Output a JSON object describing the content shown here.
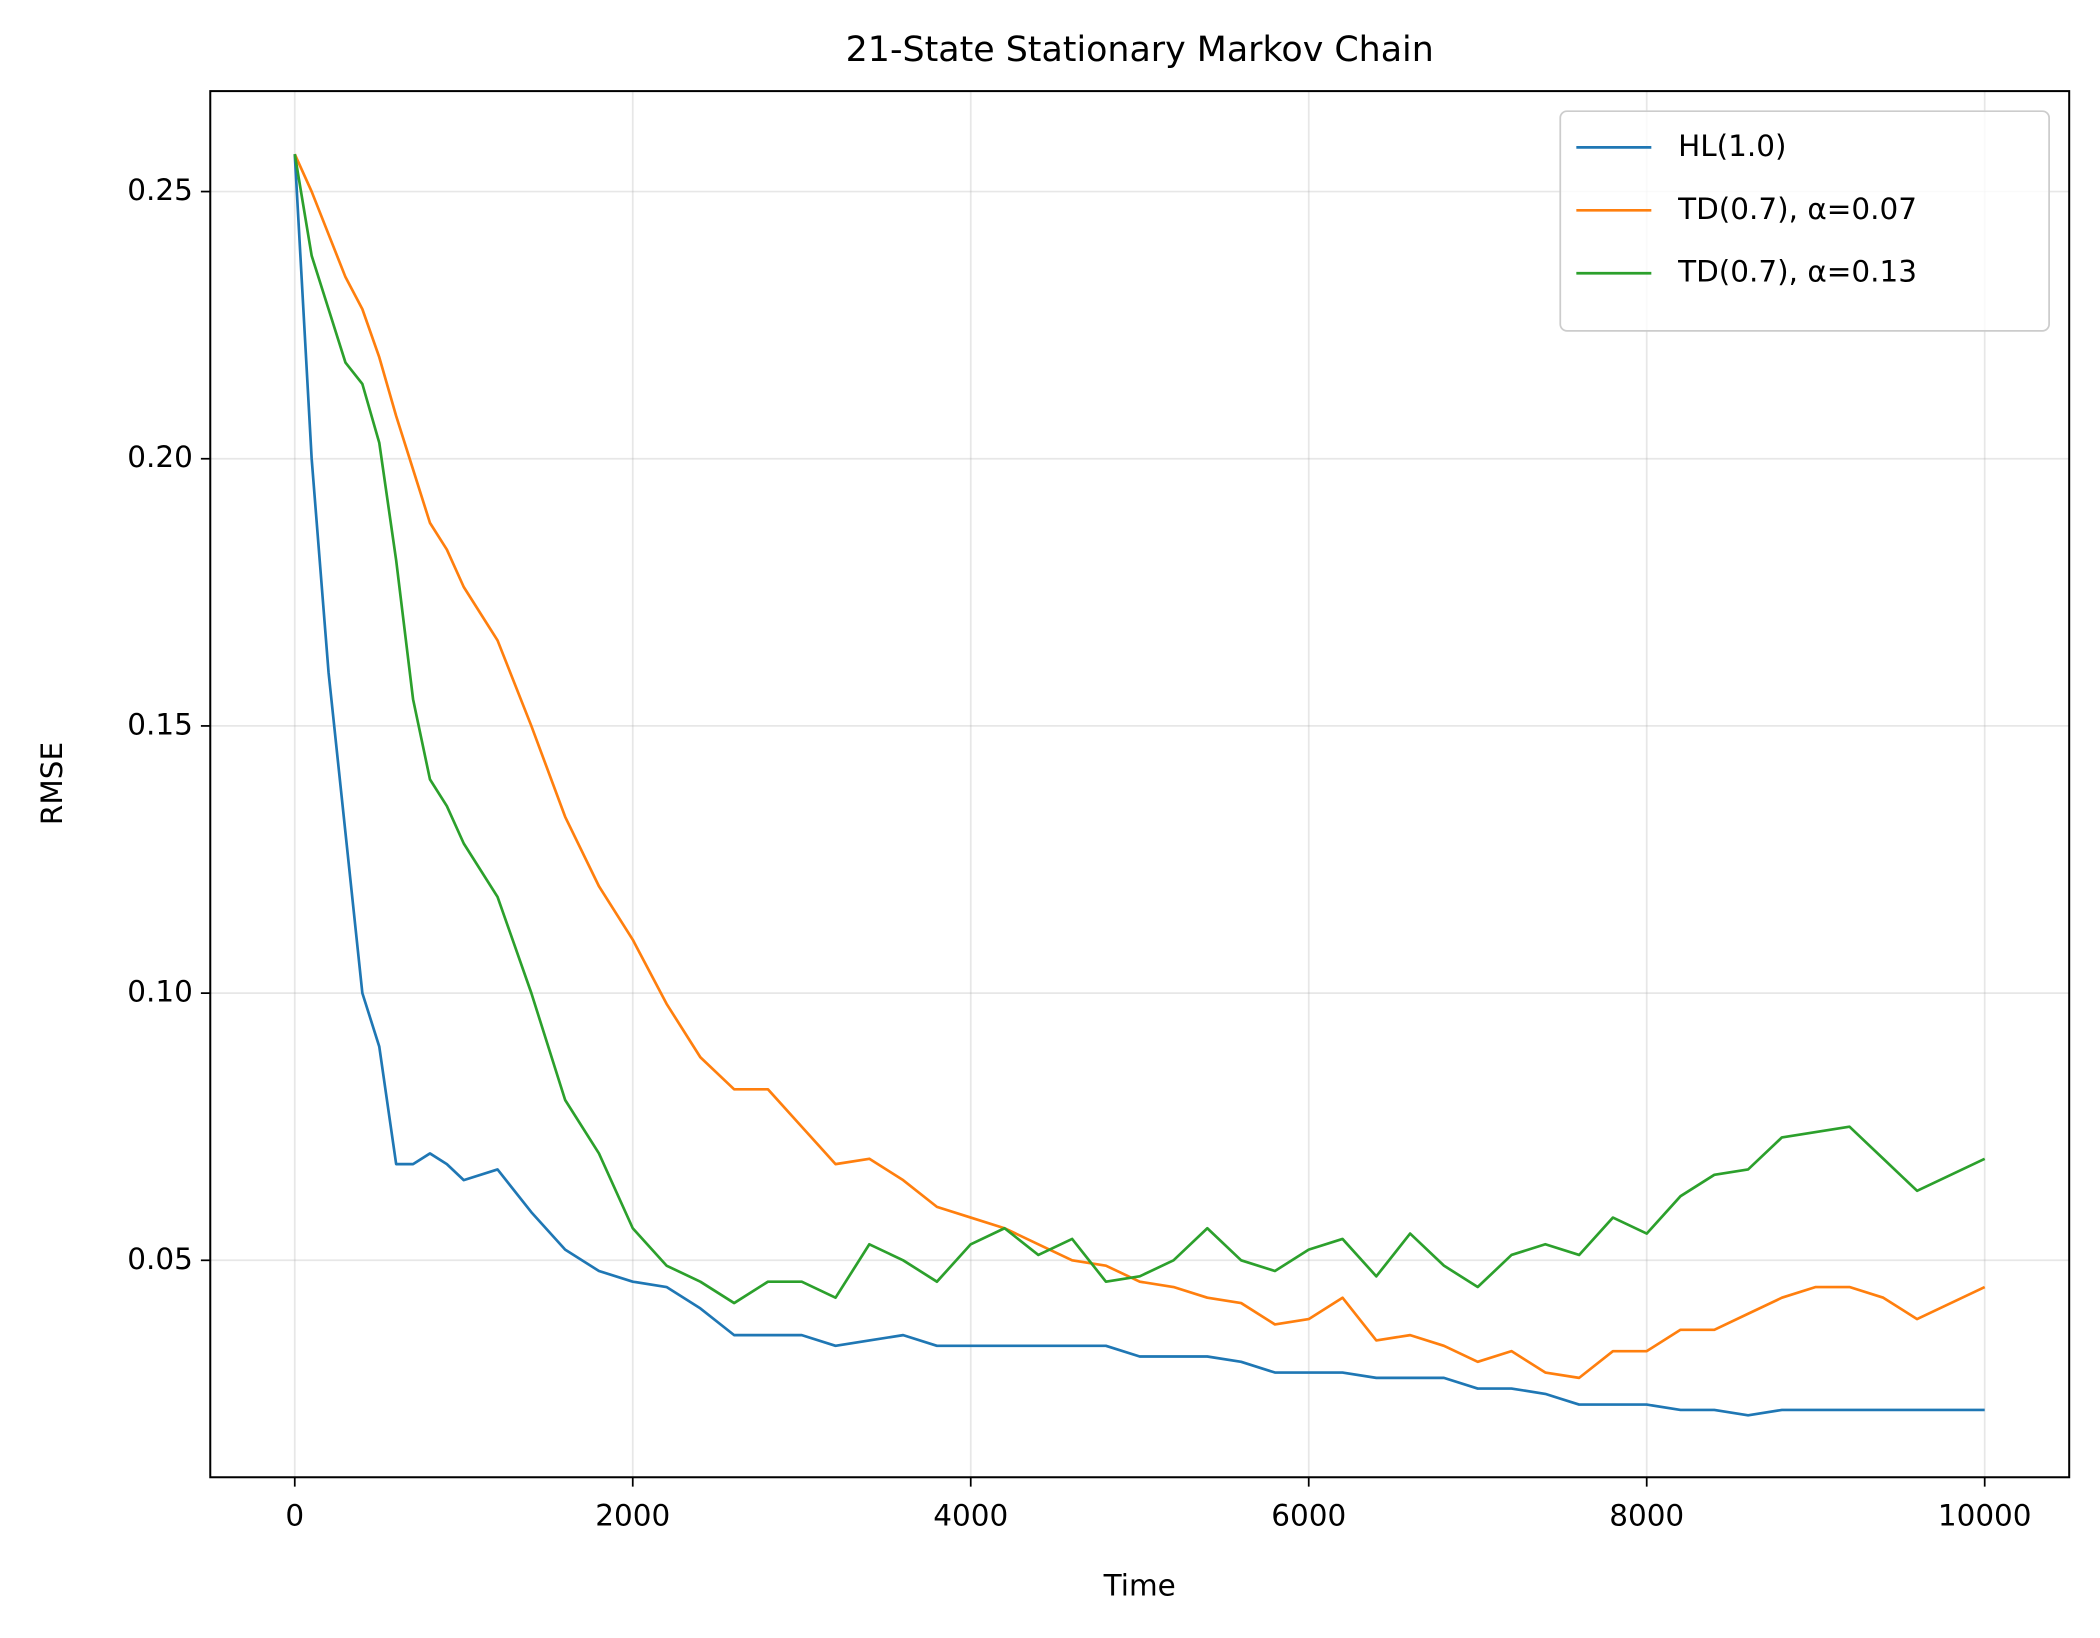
{
  "chart_data": {
    "type": "line",
    "title": "21-State Stationary Markov Chain",
    "x_label": "Time",
    "y_label": "RMSE",
    "x": [
      0,
      100,
      200,
      300,
      400,
      500,
      600,
      700,
      800,
      900,
      1000,
      1200,
      1400,
      1600,
      1800,
      2000,
      2200,
      2400,
      2600,
      2800,
      3000,
      3200,
      3400,
      3600,
      3800,
      4000,
      4200,
      4400,
      4600,
      4800,
      5000,
      5200,
      5400,
      5600,
      5800,
      6000,
      6200,
      6400,
      6600,
      6800,
      7000,
      7200,
      7400,
      7600,
      7800,
      8000,
      8200,
      8400,
      8600,
      8800,
      9000,
      9200,
      9400,
      9600,
      9800,
      10000
    ],
    "series": [
      {
        "name": "HL(1.0)",
        "color": "#1f77b4",
        "values": [
          0.257,
          0.2,
          0.16,
          0.13,
          0.1,
          0.09,
          0.068,
          0.068,
          0.07,
          0.068,
          0.065,
          0.067,
          0.059,
          0.052,
          0.048,
          0.046,
          0.045,
          0.041,
          0.036,
          0.036,
          0.036,
          0.034,
          0.035,
          0.036,
          0.034,
          0.034,
          0.034,
          0.034,
          0.034,
          0.034,
          0.032,
          0.032,
          0.032,
          0.031,
          0.029,
          0.029,
          0.029,
          0.028,
          0.028,
          0.028,
          0.026,
          0.026,
          0.025,
          0.023,
          0.023,
          0.023,
          0.022,
          0.022,
          0.021,
          0.022,
          0.022,
          0.022,
          0.022,
          0.022,
          0.022,
          0.022
        ]
      },
      {
        "name": "TD(0.7), α=0.07",
        "color": "#ff7f0e",
        "values": [
          0.257,
          0.25,
          0.242,
          0.234,
          0.228,
          0.219,
          0.208,
          0.198,
          0.188,
          0.183,
          0.176,
          0.166,
          0.15,
          0.133,
          0.12,
          0.11,
          0.098,
          0.088,
          0.082,
          0.082,
          0.075,
          0.068,
          0.069,
          0.065,
          0.06,
          0.058,
          0.056,
          0.053,
          0.05,
          0.049,
          0.046,
          0.045,
          0.043,
          0.042,
          0.038,
          0.039,
          0.043,
          0.035,
          0.036,
          0.034,
          0.031,
          0.033,
          0.029,
          0.028,
          0.033,
          0.033,
          0.037,
          0.037,
          0.04,
          0.043,
          0.045,
          0.045,
          0.043,
          0.039,
          0.042,
          0.045
        ]
      },
      {
        "name": "TD(0.7), α=0.13",
        "color": "#2ca02c",
        "values": [
          0.257,
          0.238,
          0.228,
          0.218,
          0.214,
          0.203,
          0.181,
          0.155,
          0.14,
          0.135,
          0.128,
          0.118,
          0.1,
          0.08,
          0.07,
          0.056,
          0.049,
          0.046,
          0.042,
          0.046,
          0.046,
          0.043,
          0.053,
          0.05,
          0.046,
          0.053,
          0.056,
          0.051,
          0.054,
          0.046,
          0.047,
          0.05,
          0.056,
          0.05,
          0.048,
          0.052,
          0.054,
          0.047,
          0.055,
          0.049,
          0.045,
          0.051,
          0.053,
          0.051,
          0.058,
          0.055,
          0.062,
          0.066,
          0.067,
          0.073,
          0.074,
          0.075,
          0.069,
          0.063,
          0.066,
          0.069
        ]
      }
    ],
    "xlim": [
      -500,
      10500
    ],
    "ylim": [
      0.0094,
      0.2688
    ],
    "xticks": [
      0,
      2000,
      4000,
      6000,
      8000,
      10000
    ],
    "yticks": [
      0.05,
      {
        "value": 0.1,
        "label": "0.10"
      },
      0.15,
      {
        "value": 0.2,
        "label": "0.20"
      },
      0.25
    ],
    "grid": true,
    "legend": "upper right"
  }
}
